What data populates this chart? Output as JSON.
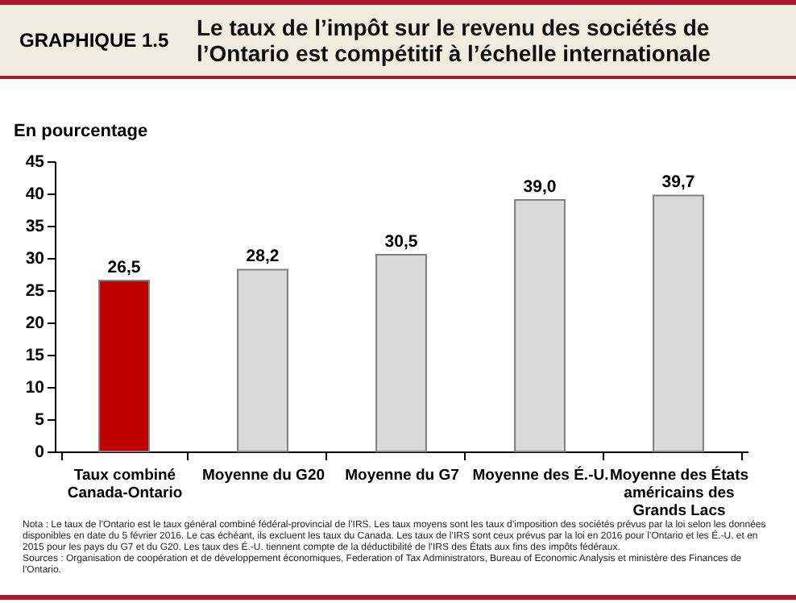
{
  "chart_data": {
    "type": "bar",
    "title": "GRAPHIQUE 1.5",
    "subtitle": "Le taux de l’impôt sur le revenu des sociétés de l’Ontario est compétitif à l’échelle internationale",
    "ylabel": "En pourcentage",
    "categories": [
      "Taux combiné Canada-Ontario",
      "Moyenne du G20",
      "Moyenne du G7",
      "Moyenne des É.-U.",
      "Moyenne des États américains des Grands Lacs"
    ],
    "values": [
      26.5,
      28.2,
      30.5,
      39.0,
      39.7
    ],
    "colors": [
      "#c00000",
      "#d9d9d9",
      "#d9d9d9",
      "#d9d9d9",
      "#d9d9d9"
    ],
    "value_labels": [
      "26,5",
      "28,2",
      "30,5",
      "39,0",
      "39,7"
    ],
    "ylim": [
      0,
      45
    ],
    "yticks": [
      0,
      5,
      10,
      15,
      20,
      25,
      30,
      35,
      40,
      45
    ],
    "grid": false,
    "annotations": [
      "Nota : Le taux de l’Ontario est le taux général combiné fédéral-provincial de l’IRS. Les taux moyens sont les taux d’imposition des sociétés prévus par la loi selon les données disponibles en date du 5 février 2016. Le cas échéant, ils excluent les taux du Canada. Les taux de l’IRS sont ceux prévus par la loi en 2016 pour l’Ontario et les É.-U. et en 2015 pour les pays du G7 et du G20. Les taux des É.-U. tiennent compte de la déductibilité de l’IRS des États aux fins des impôts fédéraux.",
      "Sources : Organisation de coopération et de développement économiques, Federation of Tax Administrators, Bureau of Economic Analysis et ministère des Finances de l’Ontario."
    ]
  }
}
